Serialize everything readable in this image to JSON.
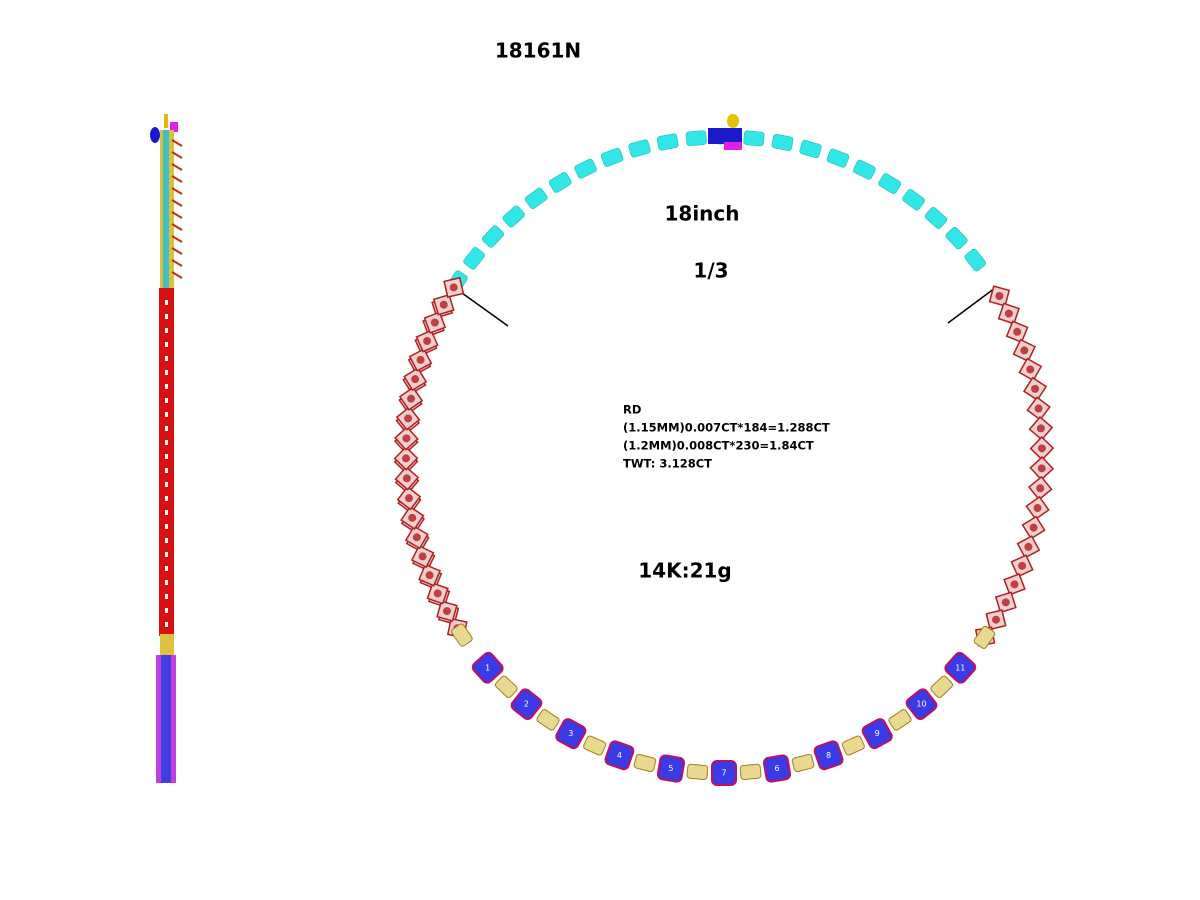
{
  "header": {
    "title": "18161N"
  },
  "annotations": {
    "length": "18inch",
    "fraction": "1/3",
    "metal": "14K:21g"
  },
  "spec": {
    "lines": [
      "RD",
      "(1.15MM)0.007CT*184=1.288CT",
      "(1.2MM)0.008CT*230=1.84CT",
      "TWT:  3.128CT"
    ]
  },
  "stones": {
    "labels": [
      "1",
      "2",
      "3",
      "4",
      "5",
      "7",
      "6",
      "8",
      "9",
      "10",
      "11"
    ]
  }
}
